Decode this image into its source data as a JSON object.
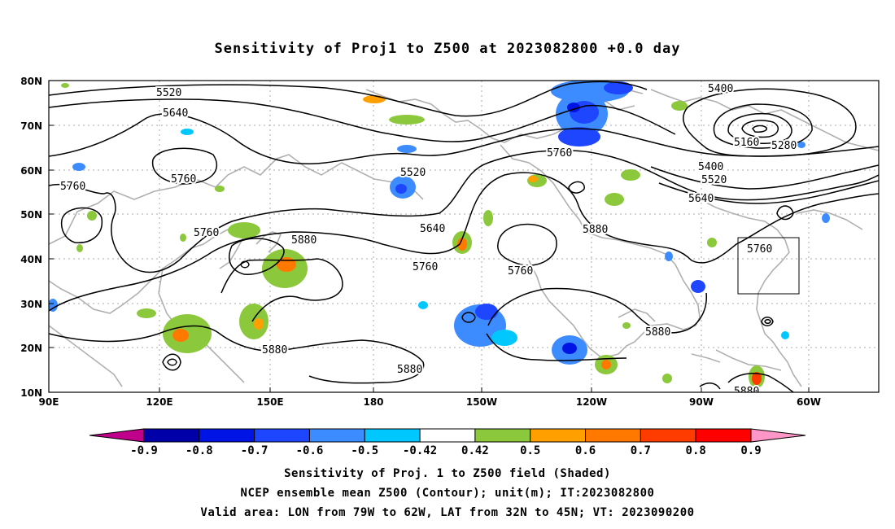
{
  "title": "Sensitivity of Proj1 to Z500 at 2023082800 +0.0 day",
  "lat_labels": [
    "80N",
    "70N",
    "60N",
    "50N",
    "40N",
    "30N",
    "20N",
    "10N"
  ],
  "lon_labels": [
    "90E",
    "120E",
    "150E",
    "180",
    "150W",
    "120W",
    "90W",
    "60W"
  ],
  "contour_labels": [
    "5520",
    "5640",
    "5760",
    "5760",
    "5760",
    "5880",
    "5520",
    "5640",
    "5760",
    "5760",
    "5880",
    "5760",
    "5400",
    "5160",
    "5280",
    "5400",
    "5520",
    "5640",
    "5760",
    "5880",
    "5880",
    "5880",
    "5880"
  ],
  "colorbar": {
    "colors": [
      "#c0008b",
      "#0000a8",
      "#0014e6",
      "#1e46ff",
      "#3c8cff",
      "#00c8ff",
      "#ffffff",
      "#8cc83c",
      "#ffa000",
      "#ff7800",
      "#ff3c00",
      "#ff0000",
      "#ff96c8"
    ],
    "labels": [
      "-0.9",
      "-0.8",
      "-0.7",
      "-0.6",
      "-0.5",
      "-0.42",
      "0.42",
      "0.5",
      "0.6",
      "0.7",
      "0.8",
      "0.9"
    ]
  },
  "captions": [
    "Sensitivity of Proj. 1 to Z500 field (Shaded)",
    "NCEP ensemble mean Z500 (Contour); unit(m); IT:2023082800",
    "Valid area: LON from 79W to 62W, LAT from 32N to 45N; VT: 2023090200"
  ]
}
